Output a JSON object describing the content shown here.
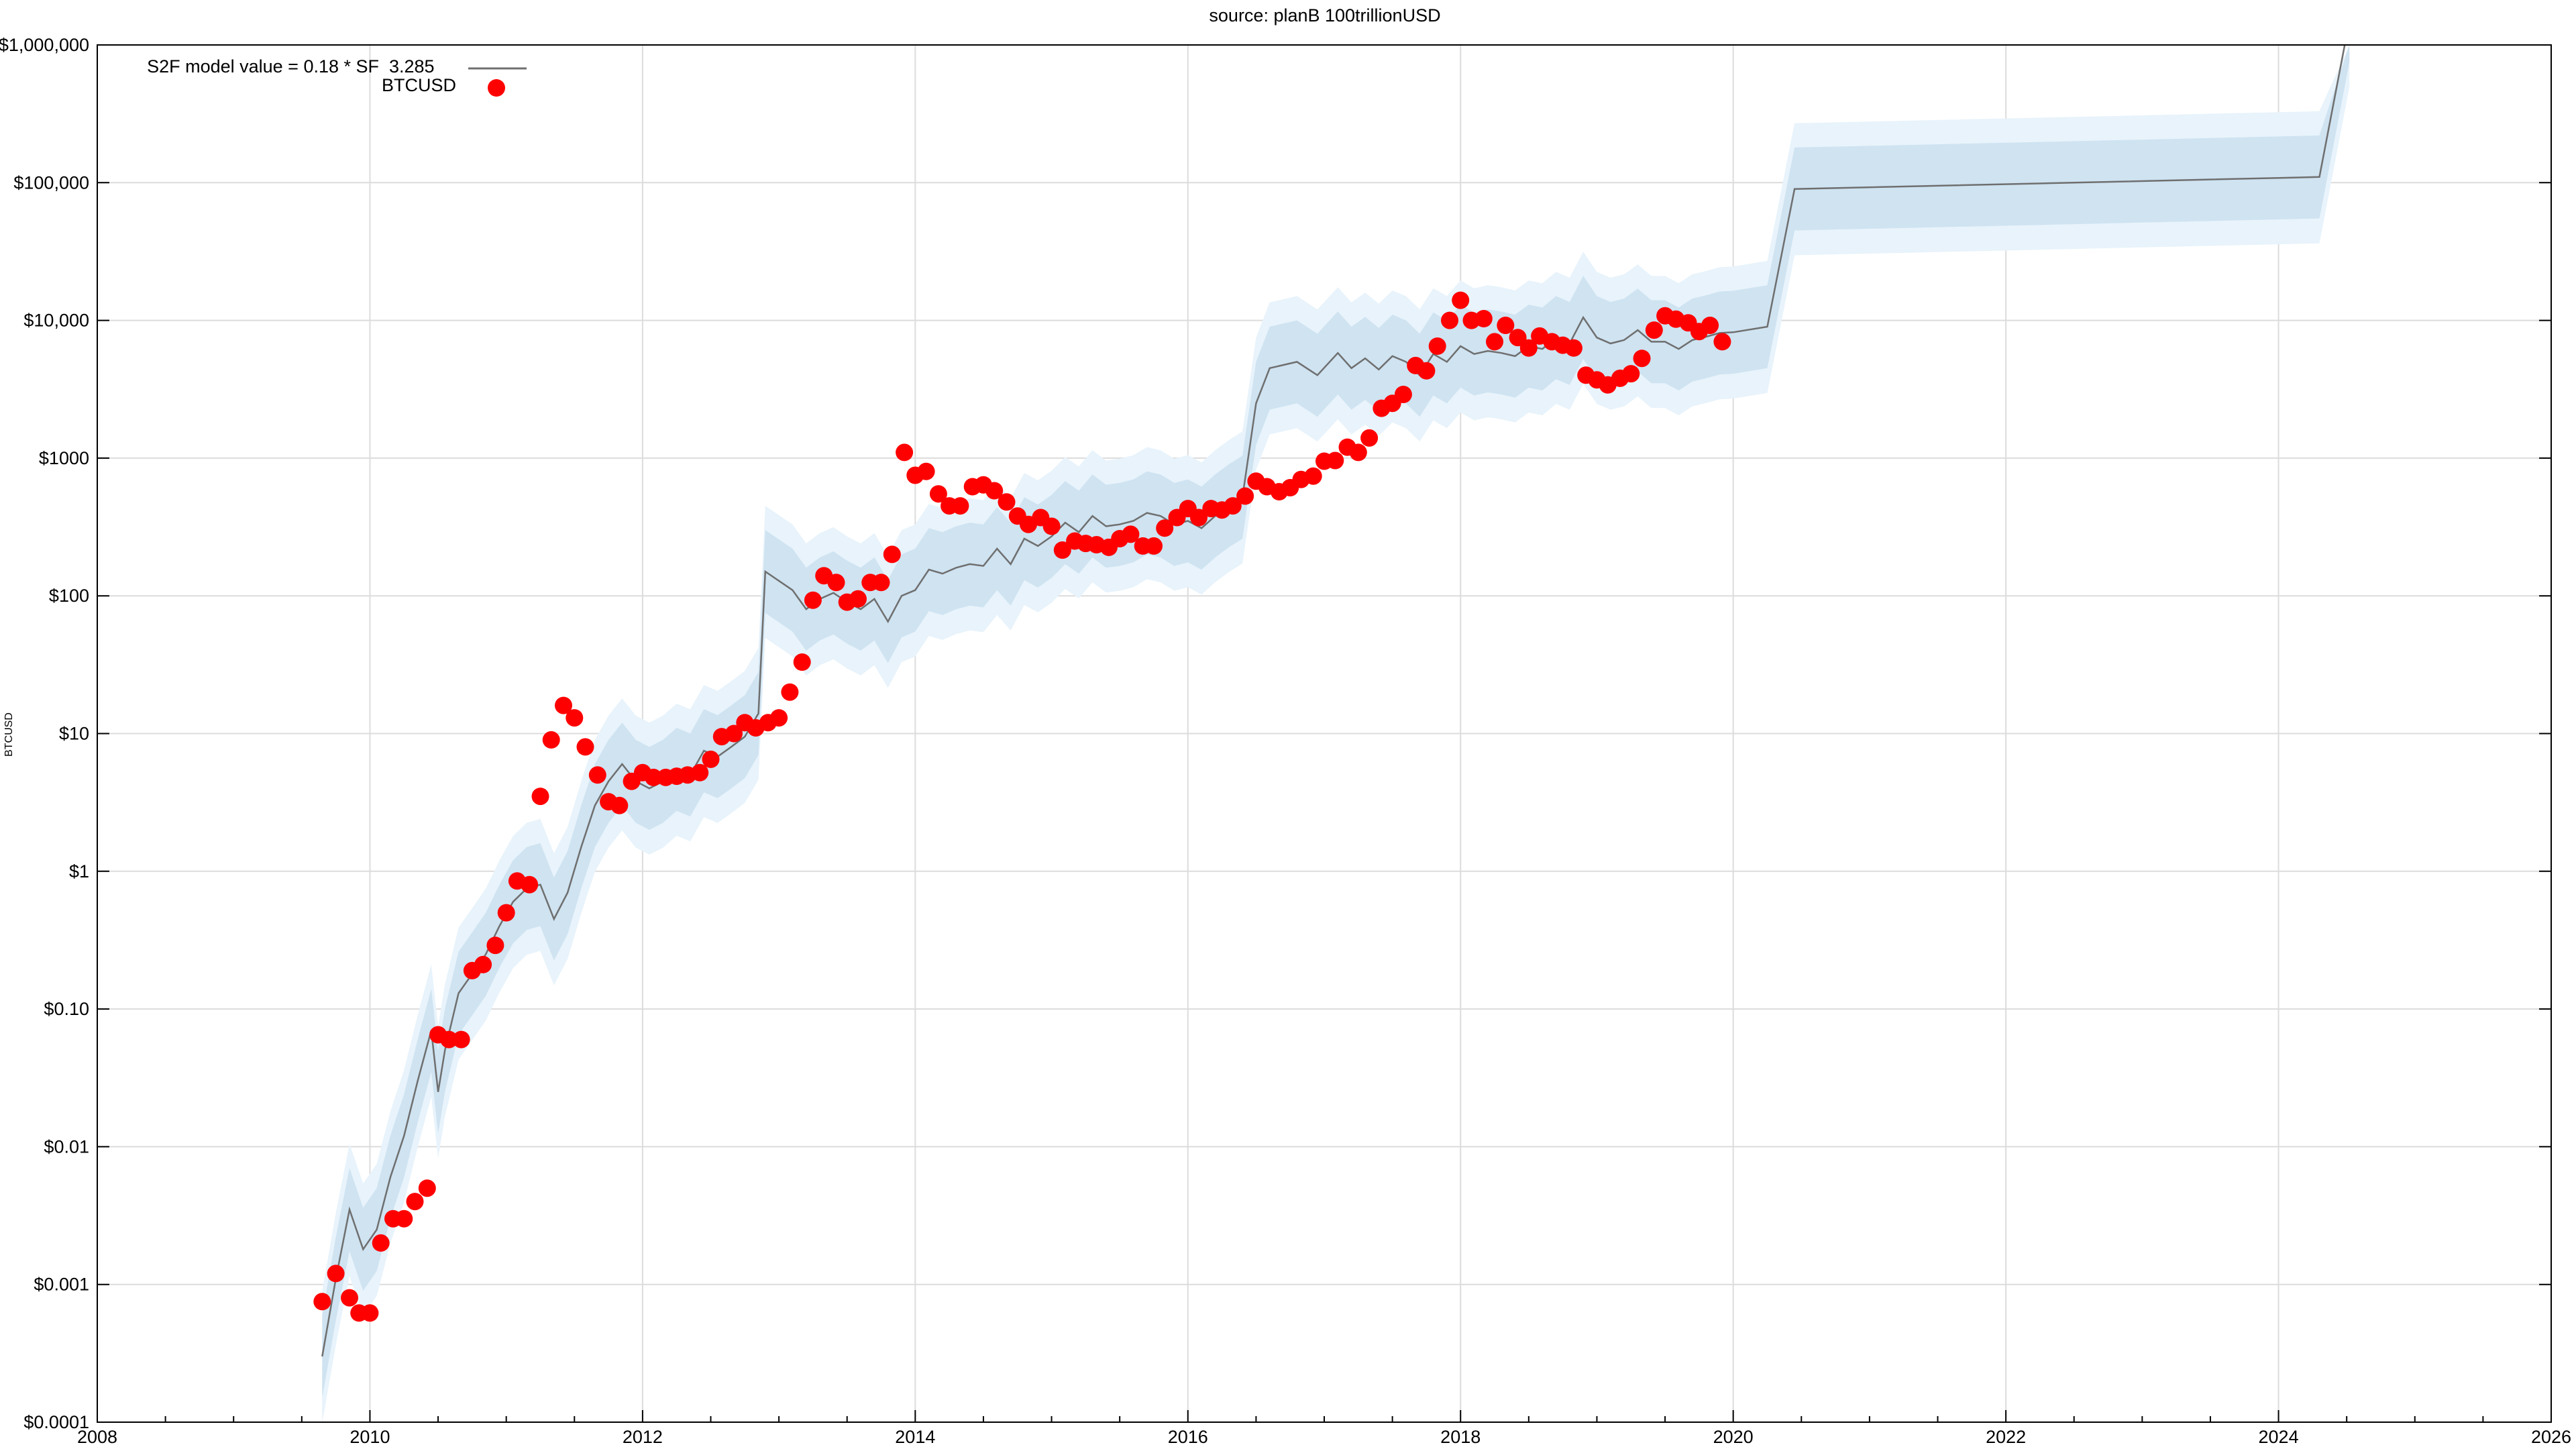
{
  "chart_data": {
    "type": "scatter",
    "title": "source: planB 100trillionUSD",
    "ylabel": "BTCUSD",
    "xlabel": "",
    "xlim": [
      2008,
      2026
    ],
    "ylim": [
      0.0001,
      1000000
    ],
    "yscale": "log",
    "grid": true,
    "legend_position": "top-left",
    "x_ticks": [
      "2008",
      "2010",
      "2012",
      "2014",
      "2016",
      "2018",
      "2020",
      "2022",
      "2024",
      "2026"
    ],
    "y_ticks": [
      {
        "value": 0.0001,
        "label": "$0.0001"
      },
      {
        "value": 0.001,
        "label": "$0.001"
      },
      {
        "value": 0.01,
        "label": "$0.01"
      },
      {
        "value": 0.1,
        "label": "$0.10"
      },
      {
        "value": 1,
        "label": "$1"
      },
      {
        "value": 10,
        "label": "$10"
      },
      {
        "value": 100,
        "label": "$100"
      },
      {
        "value": 1000,
        "label": "$1000"
      },
      {
        "value": 10000,
        "label": "$10,000"
      },
      {
        "value": 100000,
        "label": "$100,000"
      },
      {
        "value": 1000000,
        "label": "$1,000,000"
      }
    ],
    "legend": {
      "model_label": "S2F model value = 0.18 * SF",
      "model_exponent": "3.285",
      "btc_label": "BTCUSD"
    },
    "colors": {
      "model_line": "#6f6f6f",
      "band_inner": "#cfe3f1",
      "band_outer": "#e8f3fb",
      "btc_points": "#ff0000",
      "grid": "#dcdcdc"
    },
    "model_series": {
      "name": "S2F model value = 0.18 * SF 3.285",
      "points": [
        [
          2009.65,
          0.0003
        ],
        [
          2009.75,
          0.0011
        ],
        [
          2009.85,
          0.0035
        ],
        [
          2009.95,
          0.0018
        ],
        [
          2010.05,
          0.0025
        ],
        [
          2010.15,
          0.006
        ],
        [
          2010.25,
          0.012
        ],
        [
          2010.35,
          0.03
        ],
        [
          2010.45,
          0.07
        ],
        [
          2010.5,
          0.025
        ],
        [
          2010.55,
          0.05
        ],
        [
          2010.65,
          0.13
        ],
        [
          2010.75,
          0.18
        ],
        [
          2010.85,
          0.25
        ],
        [
          2010.95,
          0.4
        ],
        [
          2011.05,
          0.6
        ],
        [
          2011.15,
          0.75
        ],
        [
          2011.25,
          0.8
        ],
        [
          2011.35,
          0.45
        ],
        [
          2011.45,
          0.7
        ],
        [
          2011.55,
          1.5
        ],
        [
          2011.65,
          3.0
        ],
        [
          2011.75,
          4.5
        ],
        [
          2011.85,
          6.0
        ],
        [
          2011.95,
          4.5
        ],
        [
          2012.05,
          4.0
        ],
        [
          2012.15,
          4.5
        ],
        [
          2012.25,
          5.5
        ],
        [
          2012.35,
          5.0
        ],
        [
          2012.45,
          7.5
        ],
        [
          2012.55,
          6.8
        ],
        [
          2012.65,
          8.0
        ],
        [
          2012.75,
          9.5
        ],
        [
          2012.85,
          14
        ],
        [
          2012.9,
          150
        ],
        [
          2013.1,
          110
        ],
        [
          2013.2,
          80
        ],
        [
          2013.3,
          95
        ],
        [
          2013.4,
          105
        ],
        [
          2013.5,
          90
        ],
        [
          2013.6,
          80
        ],
        [
          2013.7,
          95
        ],
        [
          2013.8,
          65
        ],
        [
          2013.9,
          100
        ],
        [
          2014.0,
          110
        ],
        [
          2014.1,
          155
        ],
        [
          2014.2,
          145
        ],
        [
          2014.3,
          160
        ],
        [
          2014.4,
          170
        ],
        [
          2014.5,
          165
        ],
        [
          2014.6,
          220
        ],
        [
          2014.7,
          170
        ],
        [
          2014.8,
          260
        ],
        [
          2014.9,
          230
        ],
        [
          2015.0,
          270
        ],
        [
          2015.1,
          340
        ],
        [
          2015.2,
          290
        ],
        [
          2015.3,
          380
        ],
        [
          2015.4,
          320
        ],
        [
          2015.5,
          330
        ],
        [
          2015.6,
          350
        ],
        [
          2015.7,
          400
        ],
        [
          2015.8,
          380
        ],
        [
          2015.9,
          330
        ],
        [
          2016.0,
          350
        ],
        [
          2016.1,
          310
        ],
        [
          2016.2,
          380
        ],
        [
          2016.3,
          450
        ],
        [
          2016.4,
          520
        ],
        [
          2016.5,
          2500
        ],
        [
          2016.6,
          4500
        ],
        [
          2016.8,
          5000
        ],
        [
          2016.95,
          4000
        ],
        [
          2017.1,
          5800
        ],
        [
          2017.2,
          4500
        ],
        [
          2017.3,
          5300
        ],
        [
          2017.4,
          4400
        ],
        [
          2017.5,
          5500
        ],
        [
          2017.6,
          5000
        ],
        [
          2017.7,
          4000
        ],
        [
          2017.8,
          5700
        ],
        [
          2017.9,
          5000
        ],
        [
          2018.0,
          6500
        ],
        [
          2018.1,
          5700
        ],
        [
          2018.2,
          6000
        ],
        [
          2018.3,
          5800
        ],
        [
          2018.4,
          5500
        ],
        [
          2018.5,
          6500
        ],
        [
          2018.6,
          6200
        ],
        [
          2018.7,
          7500
        ],
        [
          2018.8,
          6800
        ],
        [
          2018.9,
          10500
        ],
        [
          2019.0,
          7500
        ],
        [
          2019.1,
          6800
        ],
        [
          2019.2,
          7200
        ],
        [
          2019.3,
          8500
        ],
        [
          2019.4,
          7000
        ],
        [
          2019.5,
          7000
        ],
        [
          2019.6,
          6200
        ],
        [
          2019.7,
          7200
        ],
        [
          2019.8,
          7600
        ],
        [
          2019.9,
          8100
        ],
        [
          2020.0,
          8200
        ],
        [
          2020.25,
          9000
        ],
        [
          2020.45,
          90000
        ],
        [
          2022.5,
          100000
        ],
        [
          2024.3,
          110000
        ],
        [
          2024.52,
          1500000
        ]
      ]
    },
    "btc_series": {
      "name": "BTCUSD",
      "points": [
        [
          2009.65,
          0.00075
        ],
        [
          2009.75,
          0.0012
        ],
        [
          2009.85,
          0.0008
        ],
        [
          2009.92,
          0.00062
        ],
        [
          2010.0,
          0.00062
        ],
        [
          2010.08,
          0.002
        ],
        [
          2010.17,
          0.003
        ],
        [
          2010.25,
          0.003
        ],
        [
          2010.33,
          0.004
        ],
        [
          2010.42,
          0.005
        ],
        [
          2010.5,
          0.065
        ],
        [
          2010.58,
          0.06
        ],
        [
          2010.67,
          0.06
        ],
        [
          2010.75,
          0.19
        ],
        [
          2010.83,
          0.21
        ],
        [
          2010.92,
          0.29
        ],
        [
          2011.0,
          0.5
        ],
        [
          2011.08,
          0.85
        ],
        [
          2011.17,
          0.8
        ],
        [
          2011.25,
          3.5
        ],
        [
          2011.33,
          9.0
        ],
        [
          2011.42,
          16.0
        ],
        [
          2011.5,
          13.0
        ],
        [
          2011.58,
          8.0
        ],
        [
          2011.67,
          5.0
        ],
        [
          2011.75,
          3.2
        ],
        [
          2011.83,
          3.0
        ],
        [
          2011.92,
          4.5
        ],
        [
          2012.0,
          5.2
        ],
        [
          2012.08,
          4.8
        ],
        [
          2012.17,
          4.8
        ],
        [
          2012.25,
          4.9
        ],
        [
          2012.33,
          5.0
        ],
        [
          2012.42,
          5.2
        ],
        [
          2012.5,
          6.5
        ],
        [
          2012.58,
          9.5
        ],
        [
          2012.67,
          10.0
        ],
        [
          2012.75,
          12.0
        ],
        [
          2012.83,
          11.0
        ],
        [
          2012.92,
          12.0
        ],
        [
          2013.0,
          13.0
        ],
        [
          2013.08,
          20.0
        ],
        [
          2013.17,
          33.0
        ],
        [
          2013.25,
          93.0
        ],
        [
          2013.33,
          140.0
        ],
        [
          2013.42,
          125.0
        ],
        [
          2013.5,
          90.0
        ],
        [
          2013.58,
          95.0
        ],
        [
          2013.67,
          125.0
        ],
        [
          2013.75,
          125.0
        ],
        [
          2013.83,
          200.0
        ],
        [
          2013.92,
          1100.0
        ],
        [
          2014.0,
          750.0
        ],
        [
          2014.08,
          800.0
        ],
        [
          2014.17,
          550.0
        ],
        [
          2014.25,
          450.0
        ],
        [
          2014.33,
          450.0
        ],
        [
          2014.42,
          620.0
        ],
        [
          2014.5,
          640.0
        ],
        [
          2014.58,
          580.0
        ],
        [
          2014.67,
          480.0
        ],
        [
          2014.75,
          380.0
        ],
        [
          2014.83,
          330.0
        ],
        [
          2014.92,
          370.0
        ],
        [
          2015.0,
          320.0
        ],
        [
          2015.08,
          215.0
        ],
        [
          2015.17,
          250.0
        ],
        [
          2015.25,
          240.0
        ],
        [
          2015.33,
          235.0
        ],
        [
          2015.42,
          225.0
        ],
        [
          2015.5,
          260.0
        ],
        [
          2015.58,
          280.0
        ],
        [
          2015.67,
          230.0
        ],
        [
          2015.75,
          230.0
        ],
        [
          2015.83,
          310.0
        ],
        [
          2015.92,
          370.0
        ],
        [
          2016.0,
          430.0
        ],
        [
          2016.08,
          370.0
        ],
        [
          2016.17,
          430.0
        ],
        [
          2016.25,
          420.0
        ],
        [
          2016.33,
          450.0
        ],
        [
          2016.42,
          530.0
        ],
        [
          2016.5,
          680.0
        ],
        [
          2016.58,
          620.0
        ],
        [
          2016.67,
          570.0
        ],
        [
          2016.75,
          610.0
        ],
        [
          2016.83,
          700.0
        ],
        [
          2016.92,
          740.0
        ],
        [
          2017.0,
          950.0
        ],
        [
          2017.08,
          960.0
        ],
        [
          2017.17,
          1200.0
        ],
        [
          2017.25,
          1100.0
        ],
        [
          2017.33,
          1400.0
        ],
        [
          2017.42,
          2300.0
        ],
        [
          2017.5,
          2500.0
        ],
        [
          2017.58,
          2900.0
        ],
        [
          2017.67,
          4700.0
        ],
        [
          2017.75,
          4300.0
        ],
        [
          2017.83,
          6500.0
        ],
        [
          2017.92,
          10000.0
        ],
        [
          2018.0,
          14000.0
        ],
        [
          2018.08,
          10000.0
        ],
        [
          2018.17,
          10300.0
        ],
        [
          2018.25,
          7000.0
        ],
        [
          2018.33,
          9200.0
        ],
        [
          2018.42,
          7500.0
        ],
        [
          2018.5,
          6300.0
        ],
        [
          2018.58,
          7700.0
        ],
        [
          2018.67,
          7000.0
        ],
        [
          2018.75,
          6600.0
        ],
        [
          2018.83,
          6300.0
        ],
        [
          2018.92,
          4000.0
        ],
        [
          2019.0,
          3700.0
        ],
        [
          2019.08,
          3400.0
        ],
        [
          2019.17,
          3800.0
        ],
        [
          2019.25,
          4100.0
        ],
        [
          2019.33,
          5300.0
        ],
        [
          2019.42,
          8500.0
        ],
        [
          2019.5,
          10800.0
        ],
        [
          2019.58,
          10200.0
        ],
        [
          2019.67,
          9600.0
        ],
        [
          2019.75,
          8300.0
        ],
        [
          2019.83,
          9200.0
        ],
        [
          2019.92,
          7000.0
        ]
      ]
    }
  }
}
